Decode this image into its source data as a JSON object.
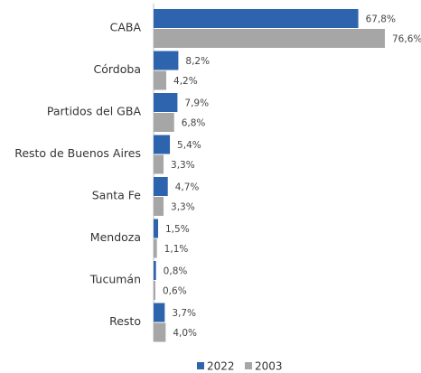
{
  "chart_data": {
    "type": "hbar",
    "categories": [
      "CABA",
      "Córdoba",
      "Partidos del GBA",
      "Resto de Buenos Aires",
      "Santa Fe",
      "Mendoza",
      "Tucumán",
      "Resto"
    ],
    "series": [
      {
        "name": "2022",
        "color": "#2e64ae",
        "values": [
          67.8,
          8.2,
          7.9,
          5.4,
          4.7,
          1.5,
          0.8,
          3.7
        ],
        "value_labels": [
          "67,8%",
          "8,2%",
          "7,9%",
          "5,4%",
          "4,7%",
          "1,5%",
          "0,8%",
          "3,7%"
        ]
      },
      {
        "name": "2003",
        "color": "#a6a6a6",
        "values": [
          76.6,
          4.2,
          6.8,
          3.3,
          3.3,
          1.1,
          0.6,
          4.0
        ],
        "value_labels": [
          "76,6%",
          "4,2%",
          "6,8%",
          "3,3%",
          "3,3%",
          "1,1%",
          "0,6%",
          "4,0%"
        ]
      }
    ],
    "legend": "bottom"
  }
}
